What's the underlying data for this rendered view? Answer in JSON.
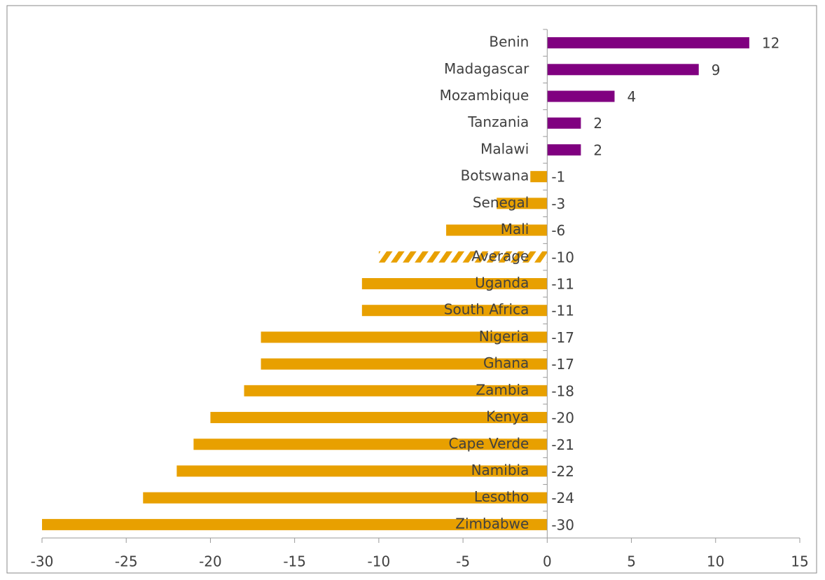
{
  "chart_data": {
    "type": "bar",
    "orientation": "horizontal",
    "categories": [
      "Benin",
      "Madagascar",
      "Mozambique",
      "Tanzania",
      "Malawi",
      "Botswana",
      "Senegal",
      "Mali",
      "Average",
      "Uganda",
      "South Africa",
      "Nigeria",
      "Ghana",
      "Zambia",
      "Kenya",
      "Cape Verde",
      "Namibia",
      "Lesotho",
      "Zimbabwe"
    ],
    "values": [
      12,
      9,
      4,
      2,
      2,
      -1,
      -3,
      -6,
      -10,
      -11,
      -11,
      -17,
      -17,
      -18,
      -20,
      -21,
      -22,
      -24,
      -30
    ],
    "colors": [
      "#800080",
      "#800080",
      "#800080",
      "#800080",
      "#800080",
      "#e8a000",
      "#e8a000",
      "#e8a000",
      "#e8a000",
      "#e8a000",
      "#e8a000",
      "#e8a000",
      "#e8a000",
      "#e8a000",
      "#e8a000",
      "#e8a000",
      "#e8a000",
      "#e8a000",
      "#e8a000"
    ],
    "patterns": [
      "solid",
      "solid",
      "solid",
      "solid",
      "solid",
      "solid",
      "solid",
      "solid",
      "hatched",
      "solid",
      "solid",
      "solid",
      "solid",
      "solid",
      "solid",
      "solid",
      "solid",
      "solid",
      "solid"
    ],
    "xlim": [
      -30,
      15
    ],
    "xticks": [
      -30,
      -25,
      -20,
      -15,
      -10,
      -5,
      0,
      5,
      10,
      15
    ],
    "grid": false
  }
}
